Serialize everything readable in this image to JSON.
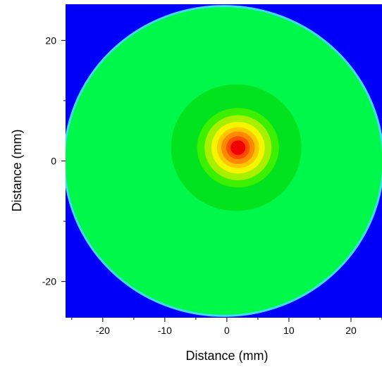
{
  "chart_data": {
    "type": "heatmap",
    "title": "",
    "xlabel": "Distance (mm)",
    "ylabel": "Distance (mm)",
    "xlim": [
      -26,
      25
    ],
    "ylim": [
      -26,
      26
    ],
    "x_ticks": [
      -20,
      -10,
      0,
      10,
      20
    ],
    "y_ticks": [
      -20,
      0,
      20
    ],
    "x_minor_ticks": [
      -25,
      -15,
      -5,
      5,
      15,
      25
    ],
    "y_minor_ticks": [
      -10,
      10
    ],
    "background_color": "#0000f8",
    "regions": [
      {
        "name": "disk",
        "shape": "circle",
        "center": [
          -0.5,
          0
        ],
        "radius": 25.7,
        "color": "#00f84a",
        "edge_color": "#43d8ff"
      },
      {
        "name": "contour-1",
        "shape": "circle",
        "center": [
          1.5,
          2.2
        ],
        "radius": 10.5,
        "color": "#00e31e"
      },
      {
        "name": "contour-2",
        "shape": "circle",
        "center": [
          1.8,
          2.2
        ],
        "radius": 6.6,
        "color": "#3cf000"
      },
      {
        "name": "contour-3",
        "shape": "circle",
        "center": [
          1.8,
          2.2
        ],
        "radius": 5.4,
        "color": "#a7f000"
      },
      {
        "name": "contour-4",
        "shape": "circle",
        "center": [
          1.8,
          2.2
        ],
        "radius": 4.3,
        "color": "#f5f500"
      },
      {
        "name": "contour-5",
        "shape": "circle",
        "center": [
          1.8,
          2.2
        ],
        "radius": 3.4,
        "color": "#ffc600"
      },
      {
        "name": "contour-6",
        "shape": "circle",
        "center": [
          1.8,
          2.2
        ],
        "radius": 2.7,
        "color": "#ff8a00"
      },
      {
        "name": "contour-7",
        "shape": "circle",
        "center": [
          1.8,
          2.2
        ],
        "radius": 1.9,
        "color": "#ff4a00"
      },
      {
        "name": "contour-8",
        "shape": "circle",
        "center": [
          1.8,
          2.2
        ],
        "radius": 1.2,
        "color": "#f00000"
      }
    ],
    "grid": false,
    "legend": "none"
  }
}
